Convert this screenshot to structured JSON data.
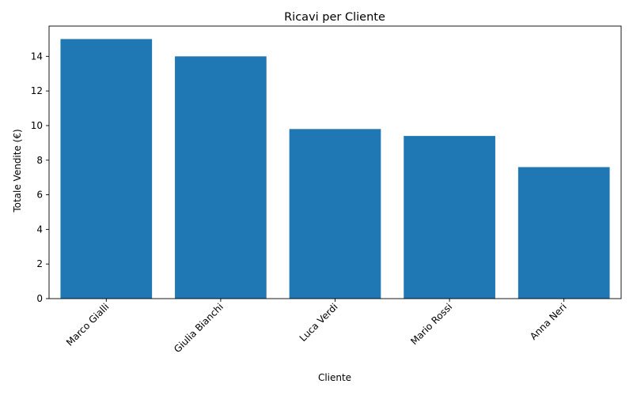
{
  "chart_data": {
    "type": "bar",
    "title": "Ricavi per Cliente",
    "xlabel": "Cliente",
    "ylabel": "Totale Vendite (€)",
    "categories": [
      "Marco Gialli",
      "Giulia Bianchi",
      "Luca Verdi",
      "Mario Rossi",
      "Anna Neri"
    ],
    "values": [
      15.0,
      14.0,
      9.8,
      9.4,
      7.6
    ],
    "ylim": [
      0,
      15.75
    ],
    "yticks": [
      0,
      2,
      4,
      6,
      8,
      10,
      12,
      14
    ],
    "bar_color": "#1f77b4",
    "grid": false,
    "legend": "none",
    "xtick_rotation": 45
  }
}
